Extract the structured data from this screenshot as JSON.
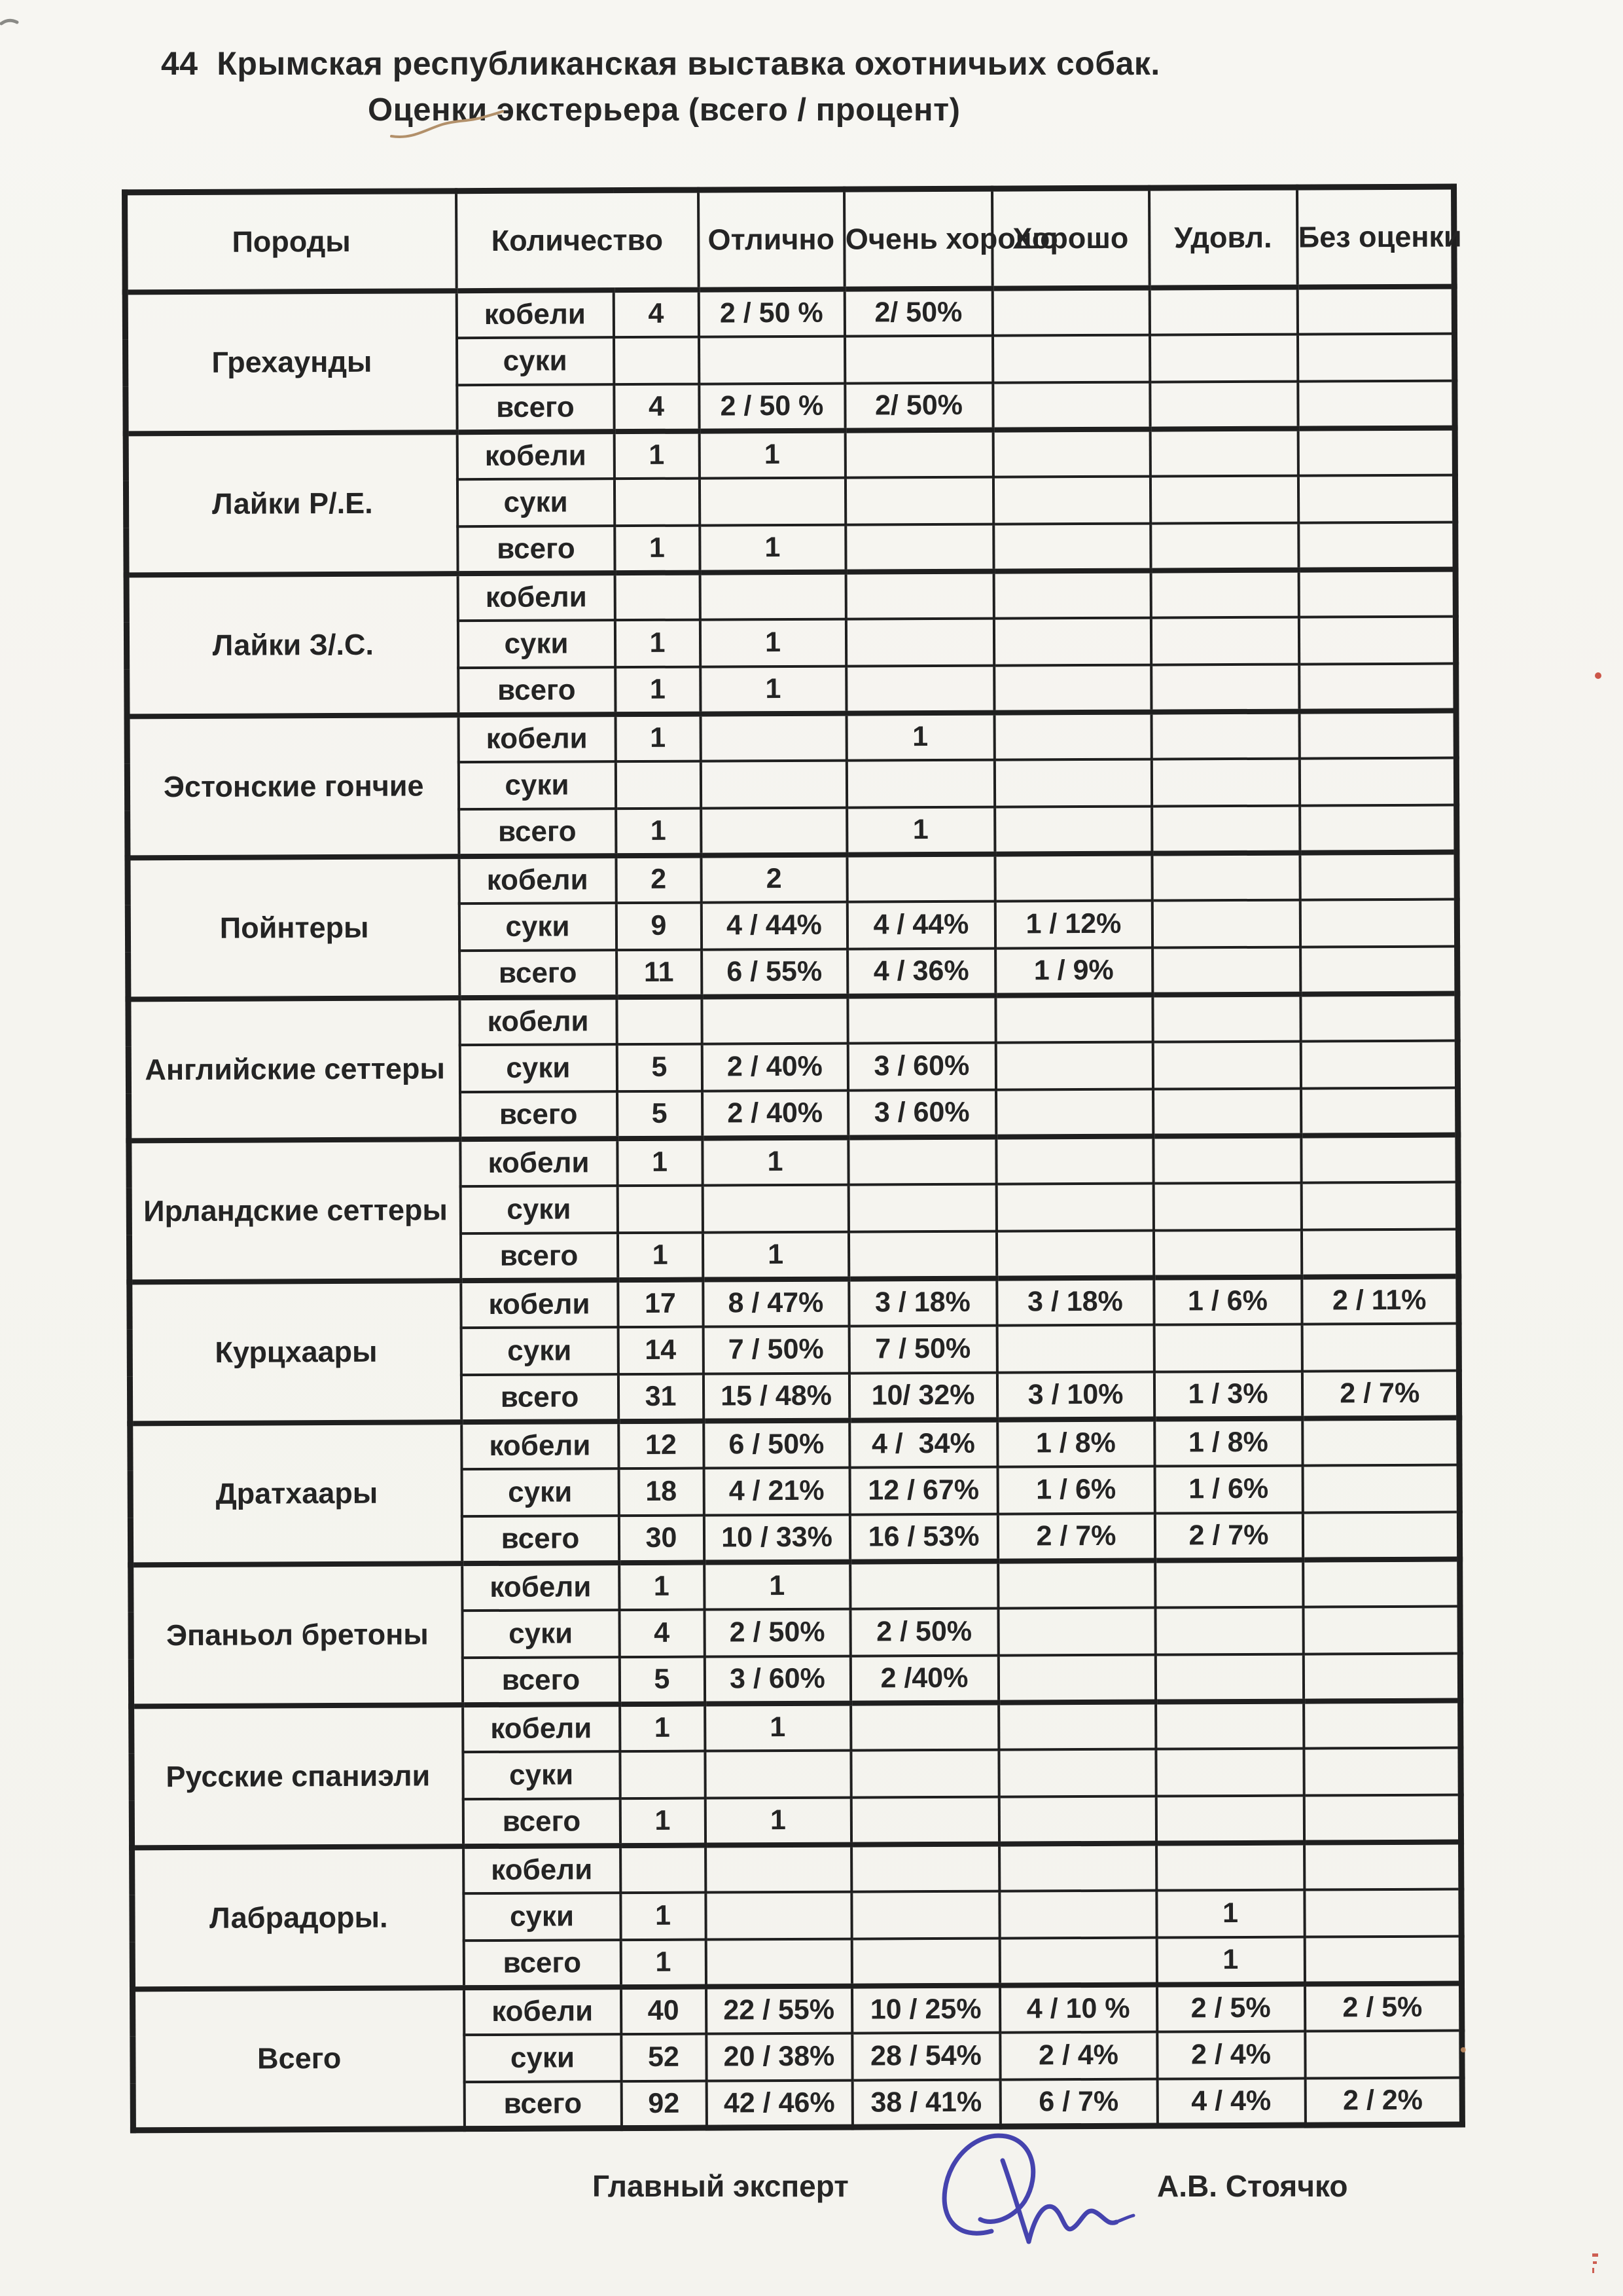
{
  "page": {
    "title_line1": "44  Крымская республиканская выставка охотничьих собак.",
    "title_line2": "Оценки экстерьера (всего / процент)",
    "footer": {
      "role_label": "Главный эксперт",
      "expert_name": "А.В. Стоячко",
      "signature_icon": "handwritten-signature-blue-ink"
    },
    "colors": {
      "paper": "#f6f5f0",
      "ink": "#242424",
      "signature_blue": "#4543ae",
      "pencil_mark": "#b2906a",
      "red_mark": "#c43a2c"
    }
  },
  "table": {
    "headers": {
      "breeds": "Породы",
      "quantity": "Количество",
      "excellent": "Отлично",
      "very_good": "Очень хорошо",
      "good": "Хорошо",
      "satisfactory": "Удовл.",
      "no_rating": "Без оценки"
    },
    "blocks": [
      {
        "breed": "Грехаунды",
        "rows": [
          {
            "sex": "кобели",
            "count": "4",
            "excellent": "2 / 50 %",
            "very_good": "2/ 50%",
            "good": "",
            "satisfactory": "",
            "no_rating": ""
          },
          {
            "sex": "суки",
            "count": "",
            "excellent": "",
            "very_good": "",
            "good": "",
            "satisfactory": "",
            "no_rating": ""
          },
          {
            "sex": "всего",
            "count": "4",
            "excellent": "2 / 50 %",
            "very_good": "2/ 50%",
            "good": "",
            "satisfactory": "",
            "no_rating": ""
          }
        ]
      },
      {
        "breed": "Лайки Р/.Е.",
        "rows": [
          {
            "sex": "кобели",
            "count": "1",
            "excellent": "1",
            "very_good": "",
            "good": "",
            "satisfactory": "",
            "no_rating": ""
          },
          {
            "sex": "суки",
            "count": "",
            "excellent": "",
            "very_good": "",
            "good": "",
            "satisfactory": "",
            "no_rating": ""
          },
          {
            "sex": "всего",
            "count": "1",
            "excellent": "1",
            "very_good": "",
            "good": "",
            "satisfactory": "",
            "no_rating": ""
          }
        ]
      },
      {
        "breed": "Лайки З/.С.",
        "rows": [
          {
            "sex": "кобели",
            "count": "",
            "excellent": "",
            "very_good": "",
            "good": "",
            "satisfactory": "",
            "no_rating": ""
          },
          {
            "sex": "суки",
            "count": "1",
            "excellent": "1",
            "very_good": "",
            "good": "",
            "satisfactory": "",
            "no_rating": ""
          },
          {
            "sex": "всего",
            "count": "1",
            "excellent": "1",
            "very_good": "",
            "good": "",
            "satisfactory": "",
            "no_rating": ""
          }
        ]
      },
      {
        "breed": "Эстонские гончие",
        "rows": [
          {
            "sex": "кобели",
            "count": "1",
            "excellent": "",
            "very_good": "1",
            "good": "",
            "satisfactory": "",
            "no_rating": ""
          },
          {
            "sex": "суки",
            "count": "",
            "excellent": "",
            "very_good": "",
            "good": "",
            "satisfactory": "",
            "no_rating": ""
          },
          {
            "sex": "всего",
            "count": "1",
            "excellent": "",
            "very_good": "1",
            "good": "",
            "satisfactory": "",
            "no_rating": ""
          }
        ]
      },
      {
        "breed": "Пойнтеры",
        "rows": [
          {
            "sex": "кобели",
            "count": "2",
            "excellent": "2",
            "very_good": "",
            "good": "",
            "satisfactory": "",
            "no_rating": ""
          },
          {
            "sex": "суки",
            "count": "9",
            "excellent": "4 / 44%",
            "very_good": "4 / 44%",
            "good": "1 / 12%",
            "satisfactory": "",
            "no_rating": ""
          },
          {
            "sex": "всего",
            "count": "11",
            "excellent": "6 / 55%",
            "very_good": "4 / 36%",
            "good": "1 / 9%",
            "satisfactory": "",
            "no_rating": ""
          }
        ]
      },
      {
        "breed": "Английские сеттеры",
        "rows": [
          {
            "sex": "кобели",
            "count": "",
            "excellent": "",
            "very_good": "",
            "good": "",
            "satisfactory": "",
            "no_rating": ""
          },
          {
            "sex": "суки",
            "count": "5",
            "excellent": "2 / 40%",
            "very_good": "3 / 60%",
            "good": "",
            "satisfactory": "",
            "no_rating": ""
          },
          {
            "sex": "всего",
            "count": "5",
            "excellent": "2 / 40%",
            "very_good": "3 / 60%",
            "good": "",
            "satisfactory": "",
            "no_rating": ""
          }
        ]
      },
      {
        "breed": "Ирландские сеттеры",
        "rows": [
          {
            "sex": "кобели",
            "count": "1",
            "excellent": "1",
            "very_good": "",
            "good": "",
            "satisfactory": "",
            "no_rating": ""
          },
          {
            "sex": "суки",
            "count": "",
            "excellent": "",
            "very_good": "",
            "good": "",
            "satisfactory": "",
            "no_rating": ""
          },
          {
            "sex": "всего",
            "count": "1",
            "excellent": "1",
            "very_good": "",
            "good": "",
            "satisfactory": "",
            "no_rating": ""
          }
        ]
      },
      {
        "breed": "Курцхаары",
        "rows": [
          {
            "sex": "кобели",
            "count": "17",
            "excellent": "8 / 47%",
            "very_good": "3 / 18%",
            "good": "3 / 18%",
            "satisfactory": "1 / 6%",
            "no_rating": "2 / 11%"
          },
          {
            "sex": "суки",
            "count": "14",
            "excellent": "7 / 50%",
            "very_good": "7 / 50%",
            "good": "",
            "satisfactory": "",
            "no_rating": ""
          },
          {
            "sex": "всего",
            "count": "31",
            "excellent": "15 / 48%",
            "very_good": "10/ 32%",
            "good": "3 / 10%",
            "satisfactory": "1 / 3%",
            "no_rating": "2 / 7%"
          }
        ]
      },
      {
        "breed": "Дратхаары",
        "rows": [
          {
            "sex": "кобели",
            "count": "12",
            "excellent": "6 / 50%",
            "very_good": "4 /  34%",
            "good": "1 / 8%",
            "satisfactory": "1 / 8%",
            "no_rating": ""
          },
          {
            "sex": "суки",
            "count": "18",
            "excellent": "4 / 21%",
            "very_good": "12 / 67%",
            "good": "1 / 6%",
            "satisfactory": "1 / 6%",
            "no_rating": ""
          },
          {
            "sex": "всего",
            "count": "30",
            "excellent": "10 / 33%",
            "very_good": "16 / 53%",
            "good": "2 / 7%",
            "satisfactory": "2 / 7%",
            "no_rating": ""
          }
        ]
      },
      {
        "breed": "Эпаньол бретоны",
        "rows": [
          {
            "sex": "кобели",
            "count": "1",
            "excellent": "1",
            "very_good": "",
            "good": "",
            "satisfactory": "",
            "no_rating": ""
          },
          {
            "sex": "суки",
            "count": "4",
            "excellent": "2 / 50%",
            "very_good": "2 / 50%",
            "good": "",
            "satisfactory": "",
            "no_rating": ""
          },
          {
            "sex": "всего",
            "count": "5",
            "excellent": "3 / 60%",
            "very_good": "2 /40%",
            "good": "",
            "satisfactory": "",
            "no_rating": ""
          }
        ]
      },
      {
        "breed": "Русские спаниэли",
        "rows": [
          {
            "sex": "кобели",
            "count": "1",
            "excellent": "1",
            "very_good": "",
            "good": "",
            "satisfactory": "",
            "no_rating": ""
          },
          {
            "sex": "суки",
            "count": "",
            "excellent": "",
            "very_good": "",
            "good": "",
            "satisfactory": "",
            "no_rating": ""
          },
          {
            "sex": "всего",
            "count": "1",
            "excellent": "1",
            "very_good": "",
            "good": "",
            "satisfactory": "",
            "no_rating": ""
          }
        ]
      },
      {
        "breed": "Лабрадоры.",
        "rows": [
          {
            "sex": "кобели",
            "count": "",
            "excellent": "",
            "very_good": "",
            "good": "",
            "satisfactory": "",
            "no_rating": ""
          },
          {
            "sex": "суки",
            "count": "1",
            "excellent": "",
            "very_good": "",
            "good": "",
            "satisfactory": "1",
            "no_rating": ""
          },
          {
            "sex": "всего",
            "count": "1",
            "excellent": "",
            "very_good": "",
            "good": "",
            "satisfactory": "1",
            "no_rating": ""
          }
        ]
      },
      {
        "breed": "Всего",
        "rows": [
          {
            "sex": "кобели",
            "count": "40",
            "excellent": "22 / 55%",
            "very_good": "10 / 25%",
            "good": "4 / 10 %",
            "satisfactory": "2 / 5%",
            "no_rating": "2 / 5%"
          },
          {
            "sex": "суки",
            "count": "52",
            "excellent": "20 / 38%",
            "very_good": "28 / 54%",
            "good": "2 / 4%",
            "satisfactory": "2 / 4%",
            "no_rating": ""
          },
          {
            "sex": "всего",
            "count": "92",
            "excellent": "42 / 46%",
            "very_good": "38 / 41%",
            "good": "6 / 7%",
            "satisfactory": "4 / 4%",
            "no_rating": "2 / 2%"
          }
        ]
      }
    ]
  }
}
